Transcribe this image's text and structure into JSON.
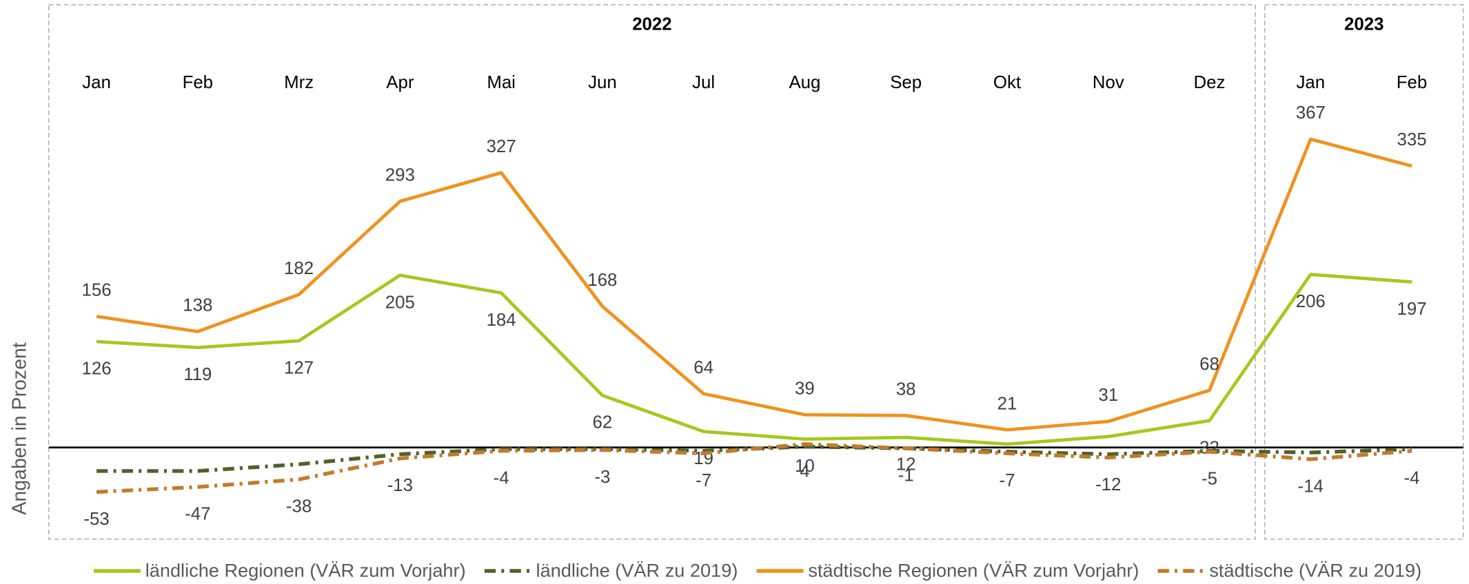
{
  "chart_data": {
    "type": "line",
    "groups": [
      "2022",
      "2023"
    ],
    "categories": [
      "Jan",
      "Feb",
      "Mrz",
      "Apr",
      "Mai",
      "Jun",
      "Jul",
      "Aug",
      "Sep",
      "Okt",
      "Nov",
      "Dez",
      "Jan",
      "Feb"
    ],
    "ylabel": "Angaben in Prozent",
    "ylim": [
      -60,
      380
    ],
    "series": [
      {
        "name": "ländliche Regionen (VÄR zum Vorjahr)",
        "color": "#a5c81e",
        "dash": "solid",
        "data_labels": true,
        "values": [
          126,
          119,
          127,
          205,
          184,
          62,
          19,
          10,
          12,
          4,
          13,
          32,
          206,
          197
        ],
        "value_labels": [
          "126",
          "119",
          "127",
          "205",
          "184",
          "62",
          "19",
          "10",
          "12",
          null,
          null,
          "32",
          "206",
          "197"
        ]
      },
      {
        "name": "ländliche (VÄR zu 2019)",
        "color": "#4f6228",
        "dash": "dashdot",
        "data_labels": false,
        "values": [
          -28,
          -28,
          -20,
          -8,
          -2,
          -2,
          -4,
          1,
          -1,
          -5,
          -8,
          -4,
          -6,
          -2
        ]
      },
      {
        "name": "städtische Regionen (VÄR zum Vorjahr)",
        "color": "#f0921e",
        "dash": "solid",
        "data_labels": true,
        "values": [
          156,
          138,
          182,
          293,
          327,
          168,
          64,
          39,
          38,
          21,
          31,
          68,
          367,
          335
        ]
      },
      {
        "name": "städtische (VÄR zu 2019)",
        "color": "#c47a2c",
        "dash": "dashdot",
        "data_labels": true,
        "values": [
          -53,
          -47,
          -38,
          -13,
          -4,
          -3,
          -7,
          4,
          -1,
          -7,
          -12,
          -5,
          -14,
          -4
        ]
      }
    ]
  }
}
